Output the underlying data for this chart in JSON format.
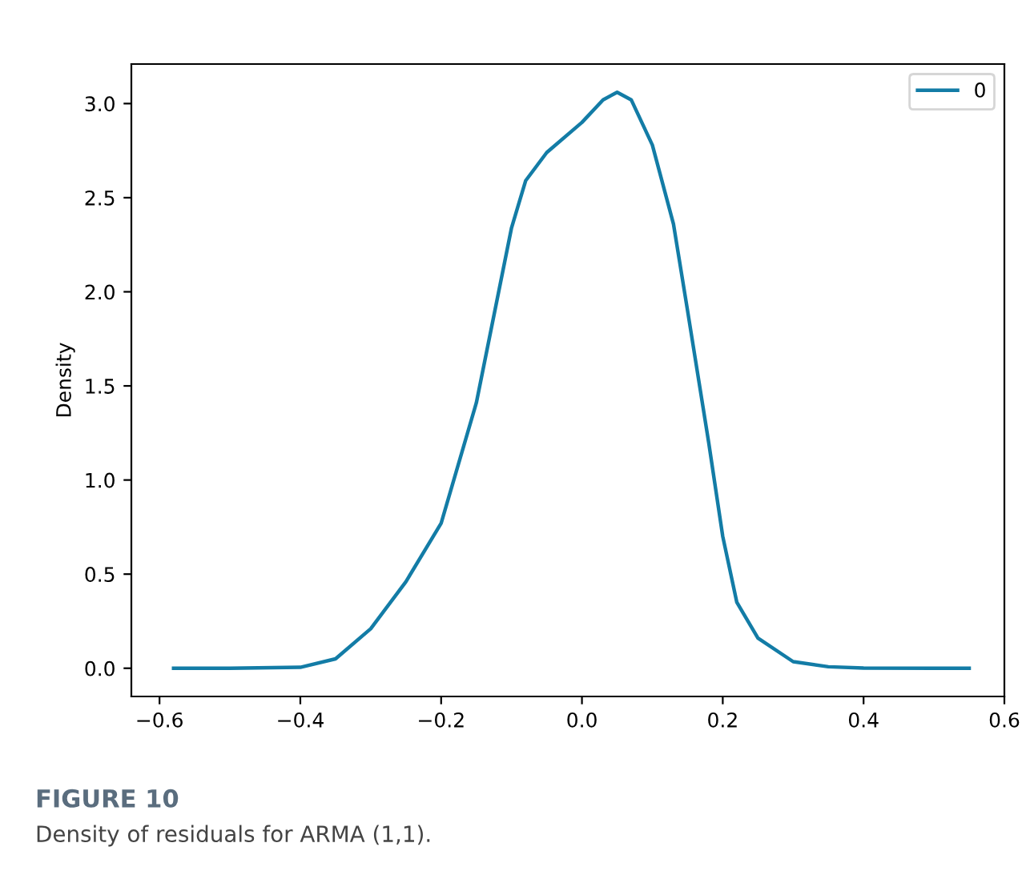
{
  "chart_data": {
    "type": "line",
    "ylabel": "Density",
    "x": [
      -0.58,
      -0.5,
      -0.4,
      -0.35,
      -0.3,
      -0.25,
      -0.2,
      -0.15,
      -0.1,
      -0.08,
      -0.05,
      0.0,
      0.03,
      0.05,
      0.07,
      0.1,
      0.13,
      0.15,
      0.18,
      0.2,
      0.22,
      0.25,
      0.3,
      0.35,
      0.4,
      0.5,
      0.55
    ],
    "series": [
      {
        "name": "0",
        "color": "#137ca6",
        "values": [
          0,
          0,
          0.005,
          0.05,
          0.21,
          0.46,
          0.77,
          1.41,
          2.34,
          2.59,
          2.74,
          2.9,
          3.02,
          3.06,
          3.02,
          2.78,
          2.36,
          1.9,
          1.2,
          0.7,
          0.35,
          0.16,
          0.035,
          0.008,
          0.001,
          0,
          0
        ]
      }
    ],
    "xlim": [
      -0.64,
      0.6
    ],
    "ylim": [
      -0.15,
      3.21
    ],
    "xticks": [
      {
        "value": -0.6,
        "label": "−0.6"
      },
      {
        "value": -0.4,
        "label": "−0.4"
      },
      {
        "value": -0.2,
        "label": "−0.2"
      },
      {
        "value": 0.0,
        "label": "0.0"
      },
      {
        "value": 0.2,
        "label": "0.2"
      },
      {
        "value": 0.4,
        "label": "0.4"
      },
      {
        "value": 0.6,
        "label": "0.6"
      }
    ],
    "yticks": [
      {
        "value": 0,
        "label": "0.0"
      },
      {
        "value": 0.5,
        "label": "0.5"
      },
      {
        "value": 1.0,
        "label": "1.0"
      },
      {
        "value": 1.5,
        "label": "1.5"
      },
      {
        "value": 2.0,
        "label": "2.0"
      },
      {
        "value": 2.5,
        "label": "2.5"
      },
      {
        "value": 3.0,
        "label": "3.0"
      }
    ],
    "grid": false,
    "legend": "top right",
    "marker": "none",
    "line_style": "solid",
    "annotations": [
      "FIGURE 10",
      "Density of residuals for ARMA (1,1)."
    ]
  }
}
